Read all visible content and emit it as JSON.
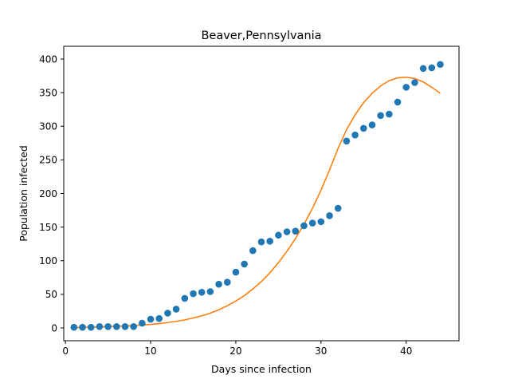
{
  "chart_data": {
    "type": "scatter",
    "title": "Beaver,Pennsylvania",
    "xlabel": "Days since infection",
    "ylabel": "Population infected",
    "xlim": [
      -0.2,
      46.2
    ],
    "ylim": [
      -19,
      419
    ],
    "xticks": [
      0,
      10,
      20,
      30,
      40
    ],
    "yticks": [
      0,
      50,
      100,
      150,
      200,
      250,
      300,
      350,
      400
    ],
    "grid": false,
    "legend": "none",
    "series": [
      {
        "kind": "scatter",
        "color": "#1f77b4",
        "x": [
          1,
          2,
          3,
          4,
          5,
          6,
          7,
          8,
          9,
          10,
          11,
          12,
          13,
          14,
          15,
          16,
          17,
          18,
          19,
          20,
          21,
          22,
          23,
          24,
          25,
          26,
          27,
          28,
          29,
          30,
          31,
          32,
          33,
          34,
          35,
          36,
          37,
          38,
          39,
          40,
          41,
          42,
          43,
          44
        ],
        "y": [
          1,
          1,
          1,
          2,
          2,
          2,
          2,
          2,
          7,
          13,
          14,
          22,
          28,
          44,
          51,
          53,
          54,
          65,
          68,
          83,
          95,
          115,
          128,
          129,
          138,
          143,
          144,
          152,
          156,
          158,
          167,
          178,
          278,
          287,
          297,
          302,
          316,
          318,
          336,
          358,
          365,
          386,
          387,
          392
        ]
      },
      {
        "kind": "line",
        "color": "#ff7f0e",
        "x": [
          1,
          2,
          3,
          4,
          5,
          6,
          7,
          8,
          9,
          10,
          11,
          12,
          13,
          14,
          15,
          16,
          17,
          18,
          19,
          20,
          21,
          22,
          23,
          24,
          25,
          26,
          27,
          28,
          29,
          30,
          31,
          32,
          33,
          34,
          35,
          36,
          37,
          38,
          39,
          40,
          41,
          42,
          43,
          44
        ],
        "y": [
          0.5,
          0.8,
          1.1,
          1.5,
          2,
          2.5,
          3,
          3.6,
          4.4,
          5.3,
          6.5,
          8,
          9.8,
          12,
          14.8,
          18,
          22,
          27,
          33,
          40,
          48,
          58,
          69,
          82,
          97,
          114,
          133,
          154,
          178,
          205,
          235,
          267,
          295,
          317,
          335,
          349,
          360,
          368,
          372,
          373,
          371,
          366,
          358,
          349
        ]
      }
    ]
  }
}
